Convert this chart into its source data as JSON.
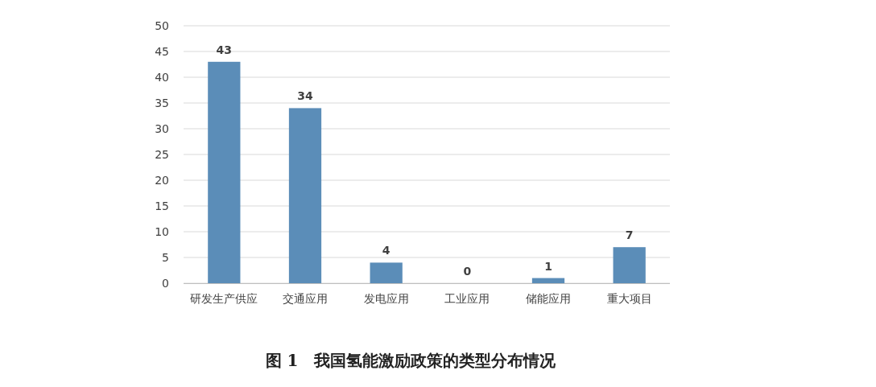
{
  "chart_data": {
    "type": "bar",
    "title": "图 1　我国氢能激励政策的类型分布情况",
    "categories": [
      "研发生产供应",
      "交通应用",
      "发电应用",
      "工业应用",
      "储能应用",
      "重大项目"
    ],
    "values": [
      43,
      34,
      4,
      0,
      1,
      7
    ],
    "color": "#5b8db8",
    "ylim": [
      0,
      50
    ],
    "yticks": [
      0,
      5,
      10,
      15,
      20,
      25,
      30,
      35,
      40,
      45,
      50
    ],
    "grid": "y",
    "data_labels": true
  }
}
